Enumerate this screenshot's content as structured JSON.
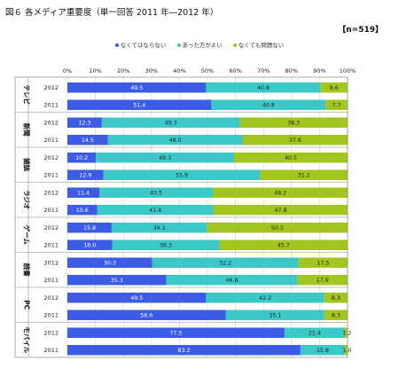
{
  "title": "図６ 各メディア重要度（単一回答 2011 年―2012 年）",
  "sample": "【n=519】",
  "colors": {
    "need": "#3c5ce6",
    "better": "#3dc8c8",
    "ok": "#a2c61e"
  },
  "chart_data": {
    "type": "bar",
    "orientation": "horizontal",
    "stacked": "percent",
    "xlim": [
      0,
      100
    ],
    "ticks": [
      "0%",
      "10%",
      "20%",
      "30%",
      "40%",
      "50%",
      "60%",
      "70%",
      "80%",
      "90%",
      "100%"
    ],
    "legend": [
      "なくてはならない",
      "あった方がよい",
      "なくても問題ない"
    ],
    "legend_position": "top",
    "groups": [
      {
        "label": "テレビ",
        "rows": [
          {
            "year": "2012",
            "values": [
              49.5,
              40.8,
              9.6
            ]
          },
          {
            "year": "2011",
            "values": [
              51.4,
              40.8,
              7.7
            ]
          }
        ]
      },
      {
        "label": "新聞",
        "rows": [
          {
            "year": "2012",
            "values": [
              12.3,
              49.3,
              38.3
            ]
          },
          {
            "year": "2011",
            "values": [
              14.5,
              48.0,
              37.6
            ]
          }
        ]
      },
      {
        "label": "雑誌",
        "rows": [
          {
            "year": "2012",
            "values": [
              10.2,
              49.3,
              40.5
            ]
          },
          {
            "year": "2011",
            "values": [
              12.9,
              55.9,
              31.2
            ]
          }
        ]
      },
      {
        "label": "ラジオ",
        "rows": [
          {
            "year": "2012",
            "values": [
              11.4,
              40.5,
              48.2
            ]
          },
          {
            "year": "2011",
            "values": [
              10.6,
              41.6,
              47.8
            ]
          }
        ]
      },
      {
        "label": "ゲーム",
        "rows": [
          {
            "year": "2012",
            "values": [
              15.8,
              34.1,
              50.1
            ]
          },
          {
            "year": "2011",
            "values": [
              16.0,
              38.3,
              45.7
            ]
          }
        ]
      },
      {
        "label": "読書",
        "rows": [
          {
            "year": "2012",
            "values": [
              30.3,
              52.2,
              17.5
            ]
          },
          {
            "year": "2011",
            "values": [
              35.3,
              46.8,
              17.9
            ]
          }
        ]
      },
      {
        "label": "PC",
        "rows": [
          {
            "year": "2012",
            "values": [
              49.5,
              42.2,
              8.3
            ]
          },
          {
            "year": "2011",
            "values": [
              56.6,
              35.1,
              8.3
            ]
          }
        ]
      },
      {
        "label": "モバイル",
        "rows": [
          {
            "year": "2012",
            "values": [
              77.5,
              21.4,
              1.2
            ]
          },
          {
            "year": "2011",
            "values": [
              83.2,
              15.8,
              1.0
            ]
          }
        ]
      }
    ]
  }
}
